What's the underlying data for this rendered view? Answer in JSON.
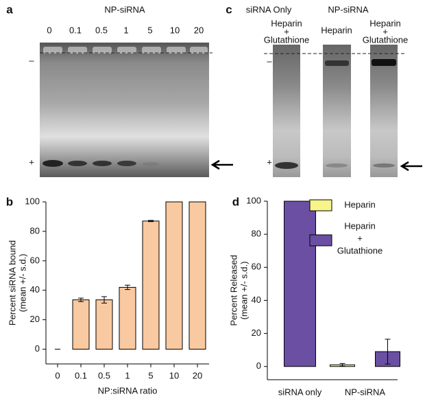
{
  "panel_a": {
    "label": "a",
    "title": "NP-siRNA",
    "lanes": [
      "0",
      "0.1",
      "0.5",
      "1",
      "5",
      "10",
      "20"
    ],
    "minus": "–",
    "plus": "+"
  },
  "panel_c": {
    "label": "c",
    "groups": [
      "siRNA Only",
      "NP-siRNA"
    ],
    "lanes": [
      [
        "Heparin",
        "+",
        "Glutathione"
      ],
      [
        "Heparin"
      ],
      [
        "Heparin",
        "+",
        "Glutathione"
      ]
    ],
    "minus": "–",
    "plus": "+"
  },
  "chart_data": [
    {
      "label": "b",
      "type": "bar",
      "categories": [
        "0",
        "0.1",
        "0.5",
        "1",
        "5",
        "10",
        "20"
      ],
      "values": [
        0,
        33.5,
        33.5,
        42,
        87,
        100,
        100
      ],
      "errors": [
        0,
        1.2,
        2.2,
        1.5,
        0.4,
        0,
        0
      ],
      "color": "#f9c9a1",
      "ylim": [
        -10,
        100
      ],
      "yticks": [
        0,
        20,
        40,
        60,
        80,
        100
      ],
      "ylabel": [
        "Percent siRNA bound",
        "(mean +/- s.d.)"
      ],
      "xlabel": "NP:siRNA ratio"
    },
    {
      "label": "d",
      "type": "grouped_bar",
      "categories": [
        "siRNA only",
        "NP-siRNA"
      ],
      "series": [
        {
          "name": [
            "Heparin"
          ],
          "color": "#f7f48a",
          "values": [
            null,
            1
          ],
          "errors": [
            null,
            0.8
          ]
        },
        {
          "name": [
            "Heparin",
            "+",
            "Glutathione"
          ],
          "color": "#6a4fa3",
          "values": [
            100,
            9
          ],
          "errors": [
            null,
            7.5
          ]
        }
      ],
      "ylim": [
        -8,
        100
      ],
      "yticks": [
        0,
        20,
        40,
        60,
        80,
        100
      ],
      "ylabel": [
        "Percent Released",
        "(mean +/- s.d.)"
      ]
    }
  ]
}
